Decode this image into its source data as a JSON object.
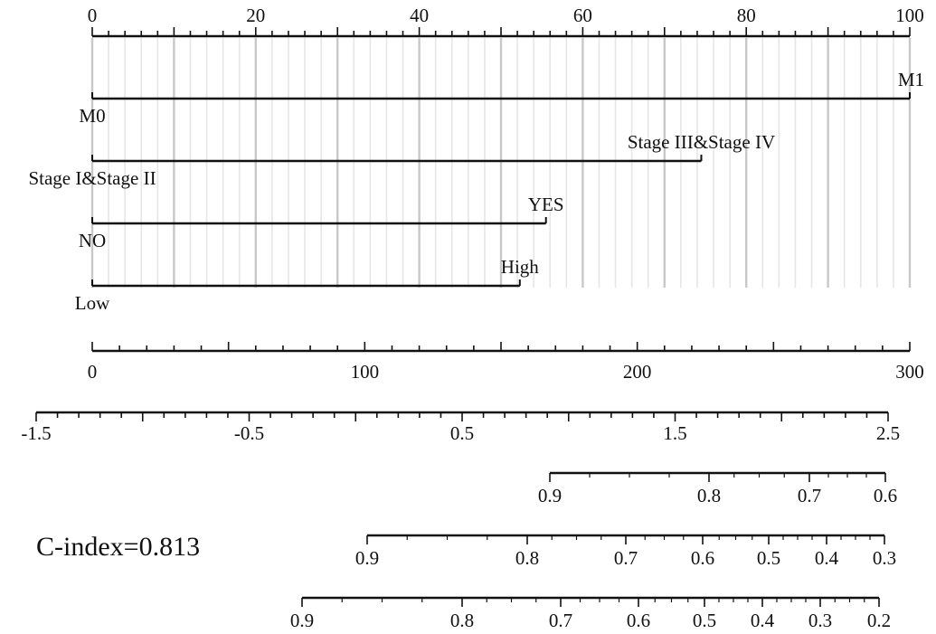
{
  "chart_data": {
    "type": "nomogram",
    "points_axis": {
      "ticks": [
        0,
        20,
        40,
        60,
        80,
        100
      ]
    },
    "predictors": [
      {
        "id": "m-stage",
        "levels": [
          {
            "label": "M0",
            "points": 0
          },
          {
            "label": "M1",
            "points": 100
          }
        ]
      },
      {
        "id": "tnm-stage",
        "levels": [
          {
            "label": "Stage I&Stage II",
            "points": 0
          },
          {
            "label": "Stage III&Stage IV",
            "points": 74.5
          }
        ]
      },
      {
        "id": "binary",
        "levels": [
          {
            "label": "NO",
            "points": 0
          },
          {
            "label": "YES",
            "points": 55.5
          }
        ]
      },
      {
        "id": "grade",
        "levels": [
          {
            "label": "Low",
            "points": 0
          },
          {
            "label": "High",
            "points": 52.3
          }
        ]
      }
    ],
    "total_points_axis": {
      "ticks": [
        0,
        100,
        200,
        300
      ]
    },
    "linear_predictor_axis": {
      "ticks": [
        "-1.5",
        "-0.5",
        "0.5",
        "1.5",
        "2.5"
      ]
    },
    "probability_axes": [
      {
        "id": "prob-1",
        "ticks": [
          "0.9",
          "0.8",
          "0.7",
          "0.6"
        ]
      },
      {
        "id": "prob-2",
        "ticks": [
          "0.9",
          "0.8",
          "0.7",
          "0.6",
          "0.5",
          "0.4",
          "0.3"
        ]
      },
      {
        "id": "prob-3",
        "ticks": [
          "0.9",
          "0.8",
          "0.7",
          "0.6",
          "0.5",
          "0.4",
          "0.3",
          "0.2"
        ]
      }
    ],
    "c_index": "C-index=0.813"
  }
}
